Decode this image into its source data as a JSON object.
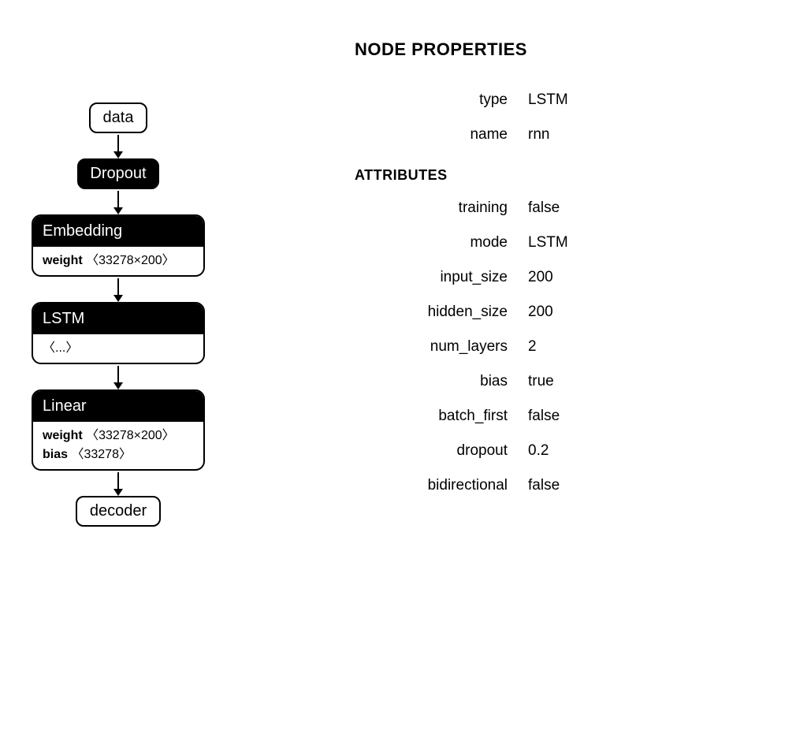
{
  "flowchart": {
    "nodes": [
      {
        "kind": "simple",
        "label": "data"
      },
      {
        "kind": "dark",
        "label": "Dropout"
      },
      {
        "kind": "complex",
        "header": "Embedding",
        "params": [
          {
            "name": "weight",
            "shape": "〈33278×200〉"
          }
        ]
      },
      {
        "kind": "complex",
        "header": "LSTM",
        "params": [
          {
            "name": "",
            "shape": "〈...〉"
          }
        ]
      },
      {
        "kind": "complex",
        "header": "Linear",
        "params": [
          {
            "name": "weight",
            "shape": "〈33278×200〉"
          },
          {
            "name": "bias",
            "shape": "〈33278〉"
          }
        ]
      },
      {
        "kind": "simple",
        "label": "decoder"
      }
    ],
    "colors": {
      "node_border": "#000000",
      "node_dark_bg": "#000000",
      "node_dark_fg": "#ffffff",
      "node_light_bg": "#ffffff",
      "arrow": "#000000"
    }
  },
  "properties": {
    "title": "NODE PROPERTIES",
    "main": [
      {
        "key": "type",
        "value": "LSTM"
      },
      {
        "key": "name",
        "value": "rnn"
      }
    ],
    "attributes_title": "ATTRIBUTES",
    "attributes": [
      {
        "key": "training",
        "value": "false"
      },
      {
        "key": "mode",
        "value": "LSTM"
      },
      {
        "key": "input_size",
        "value": "200"
      },
      {
        "key": "hidden_size",
        "value": "200"
      },
      {
        "key": "num_layers",
        "value": "2"
      },
      {
        "key": "bias",
        "value": "true"
      },
      {
        "key": "batch_first",
        "value": "false"
      },
      {
        "key": "dropout",
        "value": "0.2"
      },
      {
        "key": "bidirectional",
        "value": "false"
      }
    ]
  }
}
